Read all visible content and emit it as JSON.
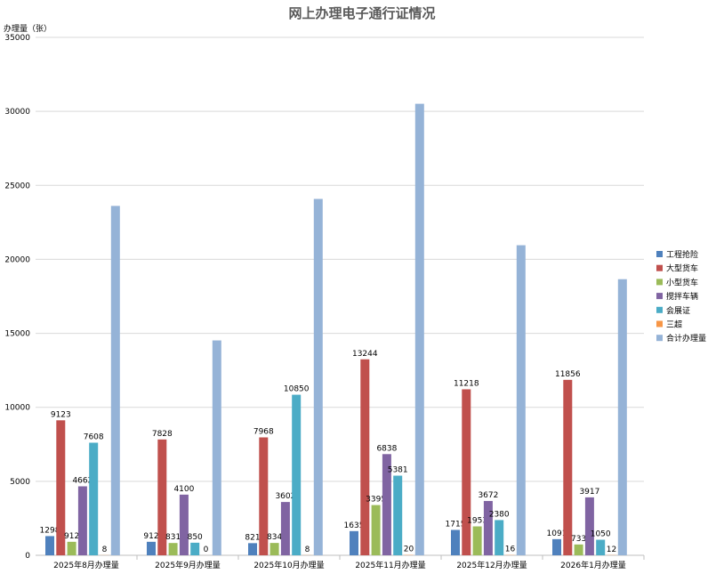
{
  "chart_data": {
    "type": "bar",
    "title": "网上办理电子通行证情况",
    "ylabel": "办理量（张）",
    "ylim": [
      0,
      35000
    ],
    "yticks": [
      0,
      5000,
      10000,
      15000,
      20000,
      25000,
      30000,
      35000
    ],
    "grid": true,
    "legend_position": "right",
    "categories": [
      "2025年8月办理量",
      "2025年9月办理量",
      "2025年10月办理量",
      "2025年11月办理量",
      "2025年12月办理量",
      "2026年1月办理量"
    ],
    "series": [
      {
        "name": "工程抢险",
        "color": "#4f81bd",
        "values": [
          1298,
          912,
          821,
          1635,
          1715,
          1091
        ],
        "labeled": true
      },
      {
        "name": "大型货车",
        "color": "#c0504d",
        "values": [
          9123,
          7828,
          7968,
          13244,
          11218,
          11856
        ],
        "labeled": true
      },
      {
        "name": "小型货车",
        "color": "#9bbb59",
        "values": [
          912,
          831,
          834,
          3395,
          1953,
          733
        ],
        "labeled": true
      },
      {
        "name": "搅拌车辆",
        "color": "#8064a2",
        "values": [
          4662,
          4100,
          3602,
          6838,
          3672,
          3917
        ],
        "labeled": true
      },
      {
        "name": "会展证",
        "color": "#4bacc6",
        "values": [
          7608,
          850,
          10850,
          5381,
          2380,
          1050
        ],
        "labeled": true
      },
      {
        "name": "三超",
        "color": "#f79646",
        "values": [
          8,
          0,
          8,
          20,
          16,
          12
        ],
        "labeled": true
      },
      {
        "name": "合计办理量",
        "color": "#95b3d7",
        "values": [
          23611,
          14521,
          24083,
          30513,
          20954,
          18659
        ],
        "labeled": false
      }
    ]
  }
}
